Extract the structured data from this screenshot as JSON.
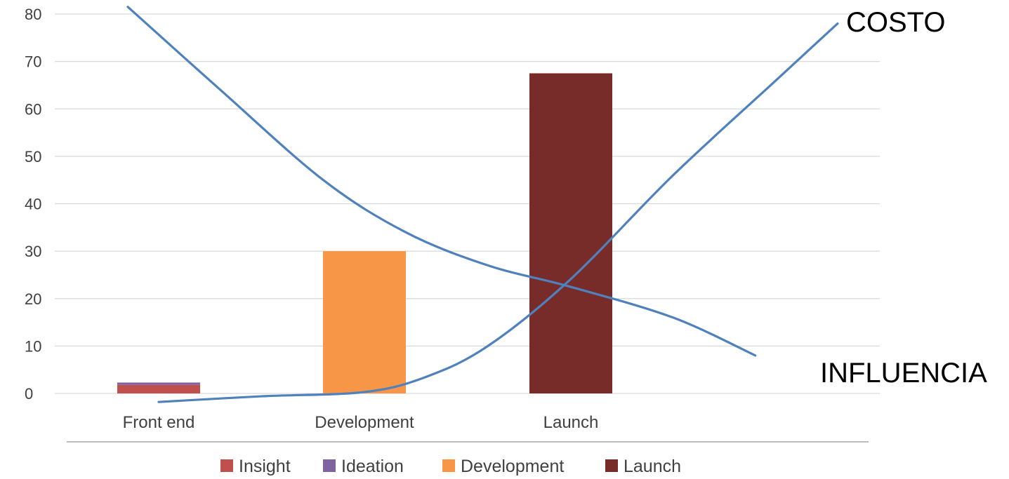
{
  "chart_data": {
    "type": "bar",
    "categories": [
      "Front end",
      "Development",
      "Launch"
    ],
    "series": [
      {
        "name": "Insight",
        "color": "#C0504D",
        "values": [
          1.8,
          0,
          0
        ]
      },
      {
        "name": "Ideation",
        "color": "#8064A2",
        "values": [
          0.5,
          0,
          0
        ]
      },
      {
        "name": "Development",
        "color": "#F79646",
        "values": [
          0,
          30,
          0
        ]
      },
      {
        "name": "Launch",
        "color": "#772C2A",
        "values": [
          0,
          0,
          67.5
        ]
      }
    ],
    "stacked": true,
    "ylim": [
      0,
      80
    ],
    "yticks": [
      0,
      10,
      20,
      30,
      40,
      50,
      60,
      70,
      80
    ],
    "grid": true,
    "legend_position": "bottom",
    "title": "",
    "xlabel": "",
    "ylabel": "",
    "overlay_curves": [
      {
        "label": "COSTO",
        "color": "#4F81BD",
        "points": [
          [
            0.0,
            -1.8
          ],
          [
            0.5,
            -0.6
          ],
          [
            1.0,
            0.3
          ],
          [
            1.3,
            3.5
          ],
          [
            1.6,
            10
          ],
          [
            2.0,
            24
          ],
          [
            2.5,
            46
          ],
          [
            3.0,
            66
          ],
          [
            3.3,
            78
          ]
        ]
      },
      {
        "label": "INFLUENCIA",
        "color": "#4F81BD",
        "points": [
          [
            -0.15,
            81.5
          ],
          [
            0.3,
            64
          ],
          [
            0.8,
            45
          ],
          [
            1.2,
            34
          ],
          [
            1.6,
            27
          ],
          [
            2.0,
            22.5
          ],
          [
            2.5,
            16
          ],
          [
            2.9,
            8
          ]
        ]
      }
    ],
    "annotations": [
      "COSTO",
      "INFLUENCIA"
    ]
  }
}
